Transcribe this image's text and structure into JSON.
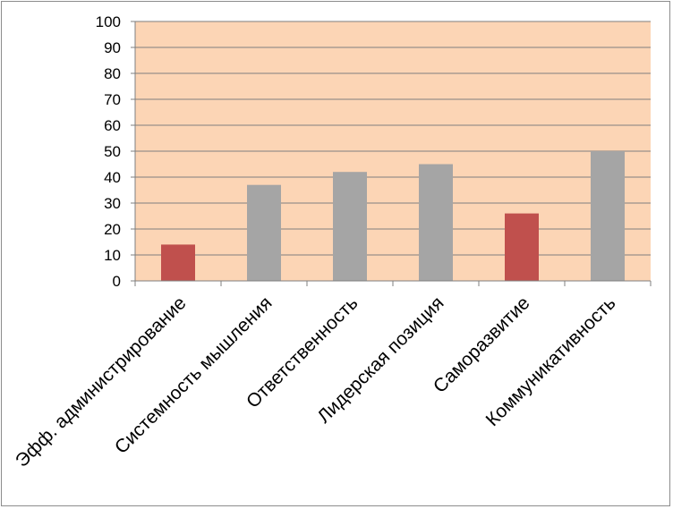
{
  "chart_data": {
    "type": "bar",
    "title": "",
    "xlabel": "",
    "ylabel": "",
    "ylim": [
      0,
      100
    ],
    "yticks": [
      0,
      10,
      20,
      30,
      40,
      50,
      60,
      70,
      80,
      90,
      100
    ],
    "grid": true,
    "legend": "none",
    "categories": [
      "Эфф. администрирование",
      "Системность мышления",
      "Ответственность",
      "Лидерская позиция",
      "Саморазвитие",
      "Коммуникативность"
    ],
    "values": [
      14,
      37,
      42,
      45,
      26,
      50
    ],
    "bar_colors": [
      "#c0504d",
      "#a5a5a5",
      "#a5a5a5",
      "#a5a5a5",
      "#c0504d",
      "#a5a5a5"
    ],
    "plot_background": "#fcd5b5",
    "gridline_color": "#7f7f7f"
  }
}
